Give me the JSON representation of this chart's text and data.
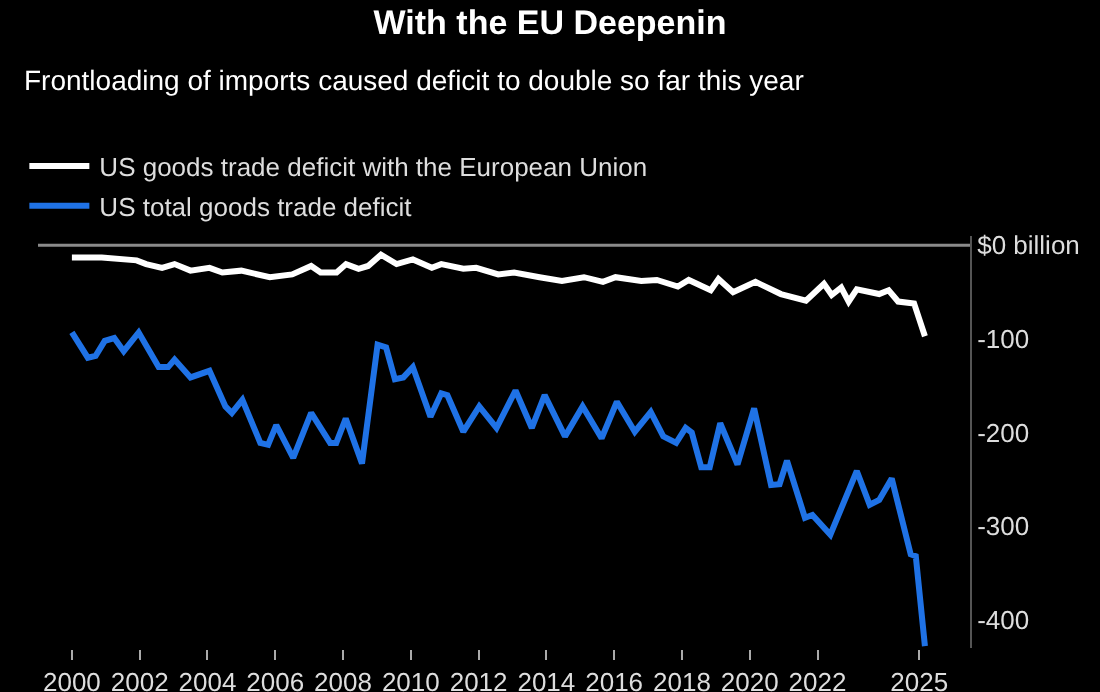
{
  "chart_data": {
    "type": "line",
    "title": "With the EU Deepenin",
    "subtitle": "Frontloading of imports caused deficit to double so far this year",
    "series": [
      {
        "name": "US goods trade deficit with the European Union",
        "color": "#ffffff",
        "x": [
          2000,
          2000.88,
          2001.91,
          2002.19,
          2002.66,
          2003.03,
          2003.5,
          2004.06,
          2004.44,
          2005,
          2005.84,
          2006.5,
          2007.06,
          2007.34,
          2007.81,
          2008.09,
          2008.46,
          2008.74,
          2009.12,
          2009.58,
          2010.06,
          2010.62,
          2010.9,
          2011.55,
          2011.93,
          2012.58,
          2013.05,
          2013.8,
          2014.46,
          2015.11,
          2015.67,
          2016.04,
          2016.8,
          2017.26,
          2017.88,
          2018.2,
          2018.85,
          2019.08,
          2019.51,
          2020.17,
          2020.92,
          2021.66,
          2022.19,
          2022.42,
          2022.7,
          2022.92,
          2023.16,
          2023.82,
          2024.1,
          2024.38,
          2024.85,
          2025.17
        ],
        "values": [
          -13,
          -13,
          -16,
          -20,
          -24,
          -20,
          -27,
          -24,
          -29,
          -27,
          -34,
          -31,
          -22,
          -29,
          -29,
          -20,
          -25,
          -22,
          -10,
          -20,
          -15,
          -24,
          -20,
          -25,
          -24,
          -31,
          -29,
          -34,
          -38,
          -34,
          -39,
          -34,
          -38,
          -37,
          -44,
          -37,
          -48,
          -36,
          -50,
          -39,
          -52,
          -59,
          -41,
          -53,
          -45,
          -60,
          -47,
          -52,
          -48,
          -60,
          -62,
          -97
        ]
      },
      {
        "name": "US total goods trade deficit",
        "color": "#1f72e6",
        "x": [
          2000,
          2000.47,
          2000.7,
          2000.97,
          2001.25,
          2001.53,
          2001.97,
          2002.56,
          2002.84,
          2003.03,
          2003.5,
          2004.06,
          2004.53,
          2004.72,
          2005.03,
          2005.56,
          2005.79,
          2006.03,
          2006.53,
          2007.06,
          2007.62,
          2007.8,
          2008.08,
          2008.56,
          2009.02,
          2009.27,
          2009.53,
          2009.78,
          2010.06,
          2010.58,
          2010.9,
          2011.08,
          2011.55,
          2012.02,
          2012.53,
          2013.09,
          2013.57,
          2013.95,
          2014.55,
          2015.07,
          2015.63,
          2016.08,
          2016.61,
          2017.08,
          2017.45,
          2017.83,
          2018.11,
          2018.29,
          2018.57,
          2018.82,
          2019.13,
          2019.64,
          2020.13,
          2020.63,
          2020.88,
          2021.1,
          2021.63,
          2021.85,
          2022.38,
          2023.16,
          2023.54,
          2023.82,
          2024.19,
          2024.75,
          2024.9,
          2025.17
        ],
        "values": [
          -93,
          -120,
          -118,
          -102,
          -99,
          -113,
          -93,
          -130,
          -130,
          -122,
          -141,
          -134,
          -172,
          -179,
          -165,
          -211,
          -213,
          -192,
          -227,
          -179,
          -211,
          -211,
          -185,
          -233,
          -106,
          -109,
          -143,
          -141,
          -130,
          -183,
          -158,
          -160,
          -199,
          -172,
          -195,
          -155,
          -195,
          -160,
          -204,
          -172,
          -206,
          -167,
          -199,
          -178,
          -204,
          -211,
          -195,
          -200,
          -237,
          -237,
          -190,
          -234,
          -174,
          -256,
          -255,
          -230,
          -291,
          -288,
          -309,
          -241,
          -277,
          -272,
          -249,
          -330,
          -332,
          -428
        ]
      }
    ],
    "xlim": [
      1999,
      2026.5
    ],
    "xticks": [
      2000,
      2002,
      2004,
      2006,
      2008,
      2010,
      2012,
      2014,
      2016,
      2018,
      2020,
      2022,
      2025
    ],
    "ylim": [
      -430,
      10
    ],
    "yticks": [
      {
        "value": 0,
        "label": "$0 billion"
      },
      -100,
      -200,
      -300,
      -400
    ],
    "ref_lines": [
      {
        "axis": "y",
        "value": 0,
        "color": "#8a8a8a"
      }
    ],
    "legend": "top left",
    "grid": false,
    "line_style": "solid",
    "marker": "none"
  }
}
